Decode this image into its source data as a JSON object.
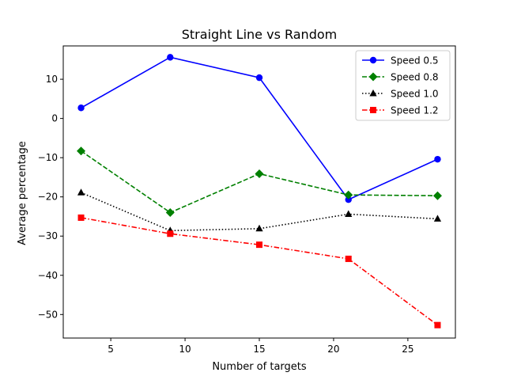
{
  "chart_data": {
    "type": "line",
    "title": "Straight Line vs Random",
    "xlabel": "Number of targets",
    "ylabel": "Average percentage",
    "xlim": [
      1.8,
      28.2
    ],
    "ylim": [
      -56,
      18.5
    ],
    "xticks": [
      5,
      10,
      15,
      20,
      25
    ],
    "xtick_labels": [
      "5",
      "10",
      "15",
      "20",
      "25"
    ],
    "yticks": [
      10,
      0,
      -10,
      -20,
      -30,
      -40,
      -50
    ],
    "ytick_labels": [
      "10",
      "0",
      "−10",
      "−20",
      "−30",
      "−40",
      "−50"
    ],
    "grid": false,
    "legend_position": "top-right",
    "x": [
      3,
      9,
      15,
      21,
      27
    ],
    "series": [
      {
        "name": "Speed 0.5",
        "values": [
          2.7,
          15.6,
          10.4,
          -20.7,
          -10.4
        ],
        "color": "#0000ff",
        "marker": "circle",
        "dash": "solid"
      },
      {
        "name": "Speed 0.8",
        "values": [
          -8.3,
          -24.0,
          -14.1,
          -19.5,
          -19.7
        ],
        "color": "#008000",
        "marker": "diamond",
        "dash": "dashed"
      },
      {
        "name": "Speed 1.0",
        "values": [
          -18.9,
          -28.6,
          -28.1,
          -24.4,
          -25.6
        ],
        "color": "#000000",
        "marker": "triangle",
        "dash": "dotted"
      },
      {
        "name": "Speed 1.2",
        "values": [
          -25.3,
          -29.4,
          -32.2,
          -35.8,
          -52.7
        ],
        "color": "#ff0000",
        "marker": "square",
        "dash": "dashdot"
      }
    ]
  }
}
